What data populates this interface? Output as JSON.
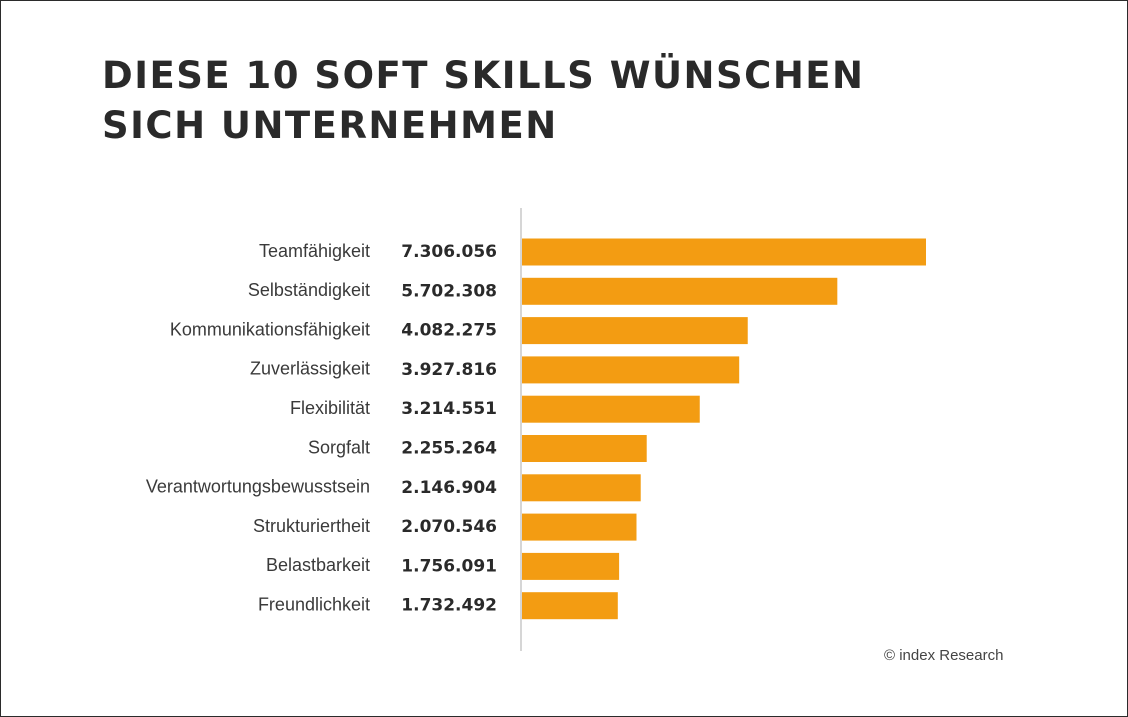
{
  "chart_data": {
    "type": "bar",
    "orientation": "horizontal",
    "title_lines": [
      "DIESE 10 SOFT SKILLS WÜNSCHEN",
      "SICH UNTERNEHMEN"
    ],
    "categories": [
      "Teamfähigkeit",
      "Selbständigkeit",
      "Kommunikationsfähigkeit",
      "Zuverlässigkeit",
      "Flexibilität",
      "Sorgfalt",
      "Verantwortungsbewusstsein",
      "Strukturiertheit",
      "Belastbarkeit",
      "Freundlichkeit"
    ],
    "values": [
      7306056,
      5702308,
      4082275,
      3927816,
      3214551,
      2255264,
      2146904,
      2070546,
      1756091,
      1732492
    ],
    "value_labels": [
      "7.306.056",
      "5.702.308",
      "4.082.275",
      "3.927.816",
      "3.214.551",
      "2.255.264",
      "2.146.904",
      "2.070.546",
      "1.756.091",
      "1.732.492"
    ],
    "xlabel": "",
    "ylabel": "",
    "grid": false,
    "legend": "none",
    "bar_color": "#f39c12",
    "axis_line_color": "#c8c8c8"
  },
  "credit": "© index Research"
}
